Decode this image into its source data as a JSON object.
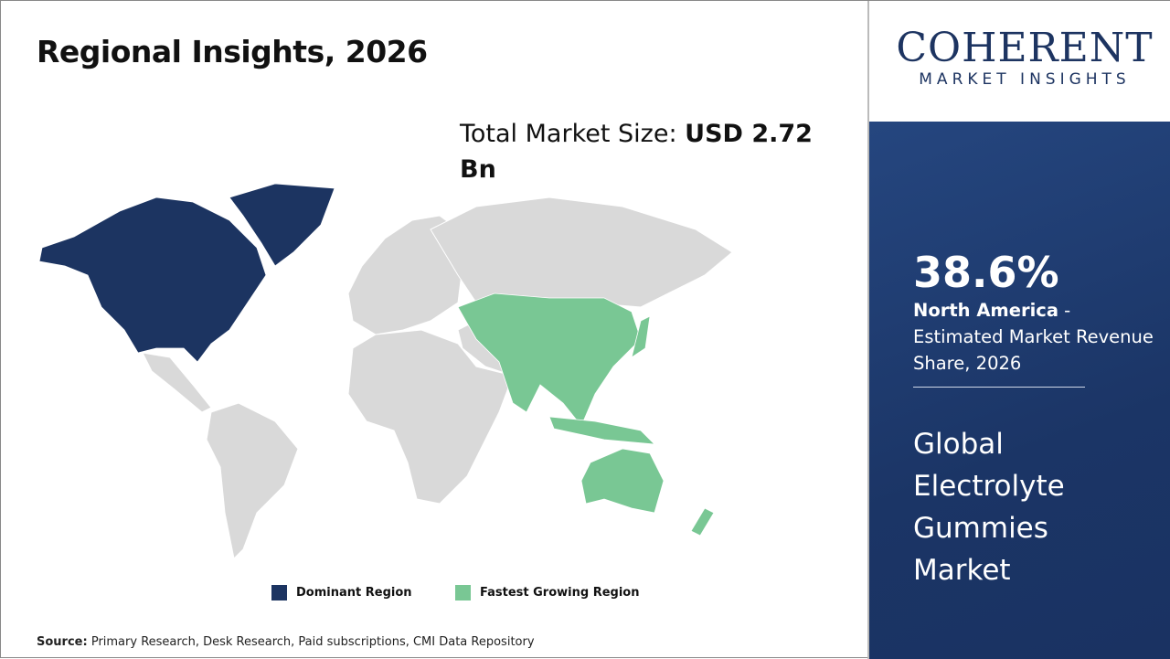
{
  "title": "Regional Insights, 2026",
  "market_size": {
    "label": "Total Market Size:",
    "value": "USD 2.72 Bn"
  },
  "colors": {
    "dominant": "#1c3461",
    "fastest": "#79c794",
    "other": "#d9d9d9",
    "panel": "#1e3a6e"
  },
  "map": {
    "dominant_region": "North America",
    "fastest_growing_region": "Asia Pacific"
  },
  "legend": [
    {
      "label": "Dominant Region",
      "color": "#1c3461"
    },
    {
      "label": "Fastest Growing Region",
      "color": "#79c794"
    }
  ],
  "source": {
    "label": "Source:",
    "text": "Primary Research, Desk Research, Paid subscriptions, CMI Data Repository"
  },
  "logo": {
    "line1": "COHERENT",
    "line2": "MARKET INSIGHTS"
  },
  "highlight": {
    "share": "38.6%",
    "region": "North America",
    "desc": " - Estimated Market Revenue Share, 2026"
  },
  "market_name": "Global Electrolyte Gummies Market"
}
